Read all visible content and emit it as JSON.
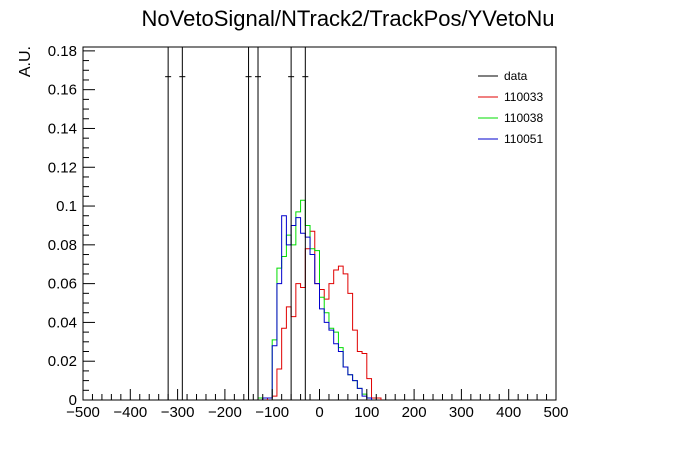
{
  "chart_data": {
    "type": "histogram",
    "title": "NoVetoSignal/NTrack2/TrackPos/YVetoNu",
    "ylabel": "A.U.",
    "xlabel": "",
    "xlim": [
      -500,
      500
    ],
    "ylim": [
      0,
      0.182
    ],
    "x_ticks": [
      -500,
      -400,
      -300,
      -200,
      -100,
      0,
      100,
      200,
      300,
      400,
      500
    ],
    "x_tick_labels": [
      "−500",
      "−400",
      "−300",
      "−200",
      "−100",
      "0",
      "100",
      "200",
      "300",
      "400",
      "500"
    ],
    "y_ticks": [
      0,
      0.02,
      0.04,
      0.06,
      0.08,
      0.1,
      0.12,
      0.14,
      0.16,
      0.18
    ],
    "y_tick_labels": [
      "0",
      "0.02",
      "0.04",
      "0.06",
      "0.08",
      "0.1",
      "0.12",
      "0.14",
      "0.16",
      "0.18"
    ],
    "bin_width": 10,
    "legend_position": "top-right",
    "legend": [
      "data",
      "110033",
      "110038",
      "110051"
    ],
    "series": [
      {
        "name": "data",
        "color": "#000000",
        "style": "markers-with-errors",
        "points": [
          {
            "x": -320,
            "y": 0.1667,
            "yerr": 0.1667
          },
          {
            "x": -290,
            "y": 0.1667,
            "yerr": 0.1667
          },
          {
            "x": -150,
            "y": 0.1667,
            "yerr": 0.1667
          },
          {
            "x": -130,
            "y": 0.1667,
            "yerr": 0.1667
          },
          {
            "x": -60,
            "y": 0.1667,
            "yerr": 0.1667
          },
          {
            "x": -30,
            "y": 0.1667,
            "yerr": 0.1667
          }
        ]
      },
      {
        "name": "110033",
        "color": "#e00000",
        "style": "step",
        "x_start": -110,
        "values": [
          0.001,
          0.002,
          0.016,
          0.037,
          0.048,
          0.043,
          0.06,
          0.058,
          0.078,
          0.087,
          0.06,
          0.057,
          0.052,
          0.06,
          0.067,
          0.069,
          0.065,
          0.055,
          0.036,
          0.025,
          0.024,
          0.011,
          0.001,
          0.001
        ]
      },
      {
        "name": "110038",
        "color": "#00dd00",
        "style": "step",
        "x_start": -130,
        "values": [
          0.001,
          0.001,
          0.001,
          0.031,
          0.068,
          0.074,
          0.085,
          0.08,
          0.097,
          0.103,
          0.09,
          0.078,
          0.077,
          0.053,
          0.045,
          0.037,
          0.035,
          0.027,
          0.017,
          0.013,
          0.01,
          0.006,
          0.003,
          0.001
        ]
      },
      {
        "name": "110051",
        "color": "#0000cc",
        "style": "step",
        "x_start": -120,
        "values": [
          0.001,
          0.001,
          0.028,
          0.06,
          0.095,
          0.08,
          0.09,
          0.094,
          0.086,
          0.084,
          0.075,
          0.06,
          0.047,
          0.04,
          0.036,
          0.029,
          0.025,
          0.017,
          0.013,
          0.01,
          0.006,
          0.002,
          0.001
        ]
      }
    ]
  }
}
